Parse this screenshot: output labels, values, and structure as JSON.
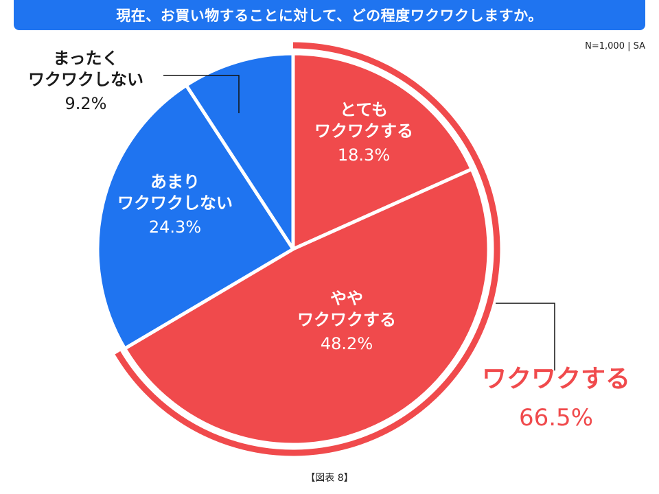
{
  "title": "現在、お買い物することに対して、どの程度ワクワクしますか。",
  "sample_note": "N=1,000 | SA",
  "figure_note": "【図表 8】",
  "colors": {
    "red": "#f04a4c",
    "blue": "#1f74f0",
    "white": "#ffffff"
  },
  "chart_data": {
    "type": "pie",
    "start": "12 o'clock, clockwise",
    "slices": [
      {
        "name_line1": "とても",
        "name_line2": "ワクワクする",
        "value": 18.3,
        "value_label": "18.3%",
        "color": "#f04a4c"
      },
      {
        "name_line1": "やや",
        "name_line2": "ワクワクする",
        "value": 48.2,
        "value_label": "48.2%",
        "color": "#f04a4c"
      },
      {
        "name_line1": "あまり",
        "name_line2": "ワクワクしない",
        "value": 24.3,
        "value_label": "24.3%",
        "color": "#1f74f0"
      },
      {
        "name_line1": "まったく",
        "name_line2": "ワクワクしない",
        "value": 9.2,
        "value_label": "9.2%",
        "color": "#1f74f0"
      }
    ],
    "group": {
      "name": "ワクワクする",
      "value": 66.5,
      "value_label": "66.5%",
      "color": "#f04a4c"
    }
  }
}
